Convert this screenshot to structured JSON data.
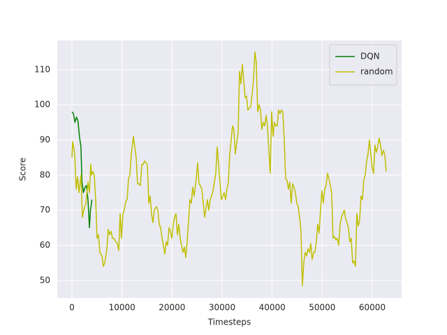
{
  "chart_data": {
    "type": "line",
    "x_label": "Timesteps",
    "y_label": "Score",
    "xlim": [
      -2930,
      65860
    ],
    "ylim": [
      45.0,
      118.3
    ],
    "xticks": [
      0,
      10000,
      20000,
      30000,
      40000,
      50000,
      60000
    ],
    "yticks": [
      50,
      60,
      70,
      80,
      90,
      100,
      110
    ],
    "grid": true,
    "legend": "upper right",
    "series": [
      {
        "name": "DQN",
        "color": "#008000",
        "x": [
          0,
          300,
          600,
          900,
          1200,
          1500,
          1800,
          2000,
          2300,
          2600,
          2900,
          3200,
          3500,
          3700,
          4000
        ],
        "values": [
          98,
          97.5,
          95,
          96.5,
          95.5,
          91,
          88,
          78,
          75,
          76.5,
          77,
          73,
          65,
          70,
          73
        ]
      },
      {
        "name": "random",
        "color": "#bfbf00",
        "x": [
          0,
          140,
          560,
          840,
          1120,
          1400,
          1810,
          2090,
          2370,
          2790,
          3210,
          3490,
          3770,
          3910,
          4190,
          4460,
          4740,
          5020,
          5300,
          5580,
          6000,
          6280,
          6560,
          6980,
          7250,
          7530,
          7810,
          8090,
          8370,
          8790,
          9070,
          9350,
          9630,
          9900,
          10180,
          10460,
          10740,
          11020,
          11300,
          11580,
          11860,
          12280,
          12560,
          12830,
          13110,
          13390,
          13670,
          13950,
          14230,
          14510,
          14790,
          15070,
          15350,
          15620,
          15900,
          16180,
          16460,
          16880,
          17160,
          17440,
          17720,
          18000,
          18270,
          18550,
          18830,
          19110,
          19390,
          19670,
          19950,
          20230,
          20510,
          20790,
          21060,
          21340,
          21620,
          21900,
          22180,
          22460,
          22740,
          23020,
          23300,
          23580,
          23850,
          24130,
          24410,
          24830,
          25110,
          25390,
          25670,
          25950,
          26230,
          26510,
          26780,
          27060,
          27340,
          27620,
          27900,
          28180,
          28460,
          28740,
          29020,
          29300,
          29570,
          29850,
          30130,
          30410,
          30690,
          30970,
          31250,
          31530,
          31810,
          32090,
          32360,
          32640,
          32920,
          33200,
          33480,
          33760,
          34040,
          34320,
          34600,
          34880,
          35150,
          35430,
          35710,
          35990,
          36270,
          36550,
          36830,
          37110,
          37390,
          37670,
          37940,
          38220,
          38500,
          38780,
          39060,
          39340,
          39620,
          39900,
          40180,
          40460,
          40730,
          41010,
          41290,
          41570,
          41850,
          42130,
          42410,
          42690,
          42970,
          43250,
          43520,
          43800,
          44080,
          44360,
          44640,
          44920,
          45200,
          45480,
          45760,
          46040,
          46310,
          46590,
          46870,
          47150,
          47430,
          47710,
          47990,
          48270,
          48550,
          48830,
          49100,
          49380,
          49660,
          49940,
          50220,
          50500,
          50780,
          51060,
          51340,
          51620,
          51890,
          52170,
          52450,
          52730,
          53010,
          53290,
          53570,
          53850,
          54130,
          54410,
          54680,
          54960,
          55240,
          55520,
          55800,
          56080,
          56360,
          56640,
          56920,
          57200,
          57470,
          57750,
          58030,
          58310,
          58590,
          58870,
          59150,
          59430,
          59710,
          59990,
          60260,
          60540,
          60820,
          61100,
          61380,
          61660,
          61940,
          62220,
          62500,
          62780
        ],
        "values": [
          85,
          89.5,
          86,
          76,
          79.5,
          75,
          80,
          68,
          70,
          72,
          78,
          75,
          83,
          80,
          81,
          80,
          73,
          62,
          63,
          58,
          57,
          54,
          55,
          59,
          64.5,
          63,
          64,
          62,
          62,
          61,
          60.5,
          58.5,
          69,
          62,
          69,
          70,
          72.5,
          73,
          79,
          80,
          86,
          91,
          88,
          85,
          77.5,
          77.5,
          77,
          83,
          83,
          84,
          83.5,
          83,
          72,
          74,
          69,
          66.5,
          70,
          71,
          70,
          66,
          65,
          62,
          60,
          57.5,
          61,
          60,
          65,
          64,
          62,
          66,
          68,
          69,
          63,
          66,
          62,
          60,
          58,
          59.5,
          56.5,
          61,
          67,
          73,
          72,
          76.5,
          74,
          79,
          83.5,
          77.5,
          77,
          76,
          72,
          68,
          70.5,
          73,
          70,
          73,
          74,
          75.5,
          78,
          80.5,
          88,
          83,
          78,
          73,
          74,
          75,
          73,
          76,
          78,
          86,
          90,
          94,
          93,
          86,
          89,
          92,
          109.5,
          106,
          111.5,
          107,
          102,
          102.5,
          98.5,
          99,
          99.5,
          103,
          107,
          115,
          112,
          98,
          100,
          98.5,
          93,
          95,
          94,
          97,
          94,
          87,
          80.5,
          98,
          91,
          95,
          94,
          94,
          98.5,
          97.5,
          98.5,
          98,
          90,
          79,
          78.5,
          76,
          78,
          72,
          77.5,
          76.5,
          75,
          72,
          71,
          68,
          64,
          48.5,
          55,
          58,
          57,
          59,
          58,
          60.5,
          56,
          58,
          58,
          61,
          66,
          63.5,
          70,
          75.5,
          72,
          76,
          77,
          80.5,
          79,
          77,
          75,
          62,
          62.5,
          61.5,
          62,
          60,
          66,
          68,
          69,
          70,
          67.5,
          66.5,
          65,
          61,
          62,
          55,
          55.5,
          54,
          69,
          65.5,
          67,
          74,
          73,
          78.5,
          80,
          84,
          86,
          90,
          86,
          82,
          80.5,
          88.5,
          86.5,
          88,
          90.5,
          88.5,
          85.5,
          87,
          86,
          81
        ]
      }
    ]
  }
}
